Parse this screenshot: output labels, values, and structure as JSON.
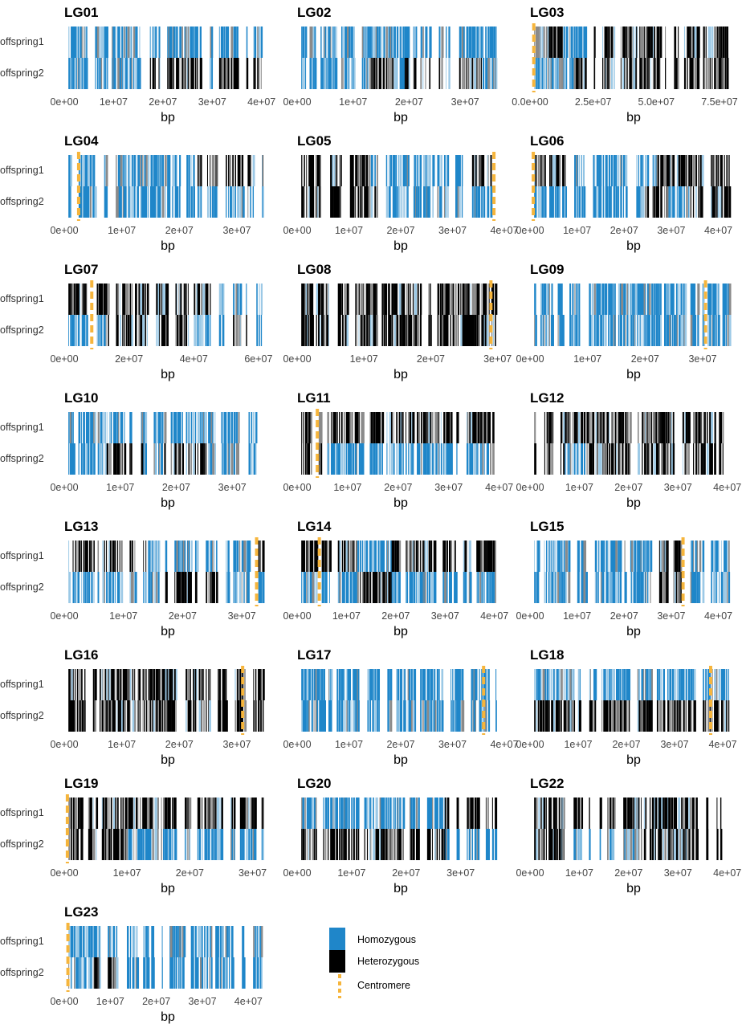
{
  "colors": {
    "homozygous": "#1f86c9",
    "homozygous_light": "#9cc9e6",
    "heterozygous": "#000000",
    "heterozygous_light": "#8a8a8a",
    "centromere": "#f6b53c"
  },
  "chart_data": {
    "type": "heatmap",
    "description_rows": [
      "offspring1",
      "offspring2"
    ],
    "xlabel": "bp",
    "legend": [
      {
        "label": "Homozygous",
        "color": "#1f86c9",
        "kind": "box"
      },
      {
        "label": "Heterozygous",
        "color": "#000000",
        "kind": "box"
      },
      {
        "label": "Centromere",
        "color": "#f6b53c",
        "kind": "dashed-line"
      }
    ],
    "panels": [
      {
        "name": "LG01",
        "xmax": 42000000,
        "ticks": [
          0,
          10000000,
          20000000,
          30000000,
          40000000
        ],
        "tick_labels": [
          "0e+00",
          "1e+07",
          "2e+07",
          "3e+07",
          "4e+07"
        ],
        "centromere": null,
        "offspring1": [
          [
            "B",
            0,
            45000000
          ]
        ],
        "offspring2": [
          [
            "B",
            0,
            17000000
          ],
          [
            "K",
            17000000,
            28000000
          ],
          [
            "B",
            28000000,
            30000000
          ],
          [
            "K",
            30000000,
            45000000
          ]
        ]
      },
      {
        "name": "LG02",
        "xmax": 37000000,
        "ticks": [
          0,
          10000000,
          20000000,
          30000000
        ],
        "tick_labels": [
          "0e+00",
          "1e+07",
          "2e+07",
          "3e+07"
        ],
        "centromere": null,
        "offspring1": [
          [
            "B",
            0,
            40000000
          ]
        ],
        "offspring2": [
          [
            "B",
            0,
            13000000
          ],
          [
            "K",
            13000000,
            17000000
          ],
          [
            "B",
            17000000,
            19000000
          ],
          [
            "K",
            19000000,
            33000000
          ],
          [
            "B",
            33000000,
            40000000
          ]
        ]
      },
      {
        "name": "LG03",
        "xmax": 82000000,
        "ticks": [
          0,
          25000000,
          50000000,
          75000000
        ],
        "tick_labels": [
          "0.0e+00",
          "2.5e+07",
          "5.0e+07",
          "7.5e+07"
        ],
        "centromere": 1500000,
        "offspring1": [
          [
            "K",
            0,
            13000000
          ],
          [
            "B",
            13000000,
            25000000
          ],
          [
            "K",
            25000000,
            60000000
          ]
        ],
        "offspring2": [
          [
            "B",
            0,
            17000000
          ],
          [
            "K",
            17000000,
            60000000
          ]
        ]
      },
      {
        "name": "LG04",
        "xmax": 36000000,
        "ticks": [
          0,
          10000000,
          20000000,
          30000000
        ],
        "tick_labels": [
          "0e+00",
          "1e+07",
          "2e+07",
          "3e+07"
        ],
        "centromere": 2500000,
        "offspring1": [
          [
            "B",
            0,
            23000000
          ],
          [
            "K",
            23000000,
            40000000
          ]
        ],
        "offspring2": [
          [
            "B",
            0,
            40000000
          ]
        ]
      },
      {
        "name": "LG05",
        "xmax": 40000000,
        "ticks": [
          0,
          10000000,
          20000000,
          30000000,
          40000000
        ],
        "tick_labels": [
          "0e+00",
          "1e+07",
          "2e+07",
          "3e+07",
          "4e+07"
        ],
        "centromere": 38000000,
        "offspring1": [
          [
            "K",
            0,
            14000000
          ],
          [
            "B",
            14000000,
            32000000
          ],
          [
            "K",
            32000000,
            40000000
          ]
        ],
        "offspring2": [
          [
            "K",
            0,
            15000000
          ],
          [
            "B",
            15000000,
            40000000
          ]
        ]
      },
      {
        "name": "LG06",
        "xmax": 44000000,
        "ticks": [
          0,
          10000000,
          20000000,
          30000000,
          40000000
        ],
        "tick_labels": [
          "0e+00",
          "1e+07",
          "2e+07",
          "3e+07",
          "4e+07"
        ],
        "centromere": 700000,
        "offspring1": [
          [
            "K",
            0,
            8000000
          ],
          [
            "B",
            8000000,
            27000000
          ],
          [
            "K",
            27000000,
            40000000
          ]
        ],
        "offspring2": [
          [
            "B",
            0,
            24000000
          ],
          [
            "K",
            24000000,
            29000000
          ],
          [
            "B",
            29000000,
            34000000
          ],
          [
            "K",
            34000000,
            40000000
          ]
        ]
      },
      {
        "name": "LG07",
        "xmax": 64000000,
        "ticks": [
          0,
          20000000,
          40000000,
          60000000
        ],
        "tick_labels": [
          "0e+00",
          "2e+07",
          "4e+07",
          "6e+07"
        ],
        "centromere": 8500000,
        "offspring1": [
          [
            "K",
            0,
            45000000
          ],
          [
            "B",
            45000000,
            64000000
          ]
        ],
        "offspring2": [
          [
            "B",
            0,
            13000000
          ],
          [
            "K",
            13000000,
            40000000
          ],
          [
            "B",
            40000000,
            52000000
          ],
          [
            "K",
            52000000,
            58000000
          ],
          [
            "B",
            58000000,
            64000000
          ]
        ]
      },
      {
        "name": "LG08",
        "xmax": 31000000,
        "ticks": [
          0,
          10000000,
          20000000,
          30000000
        ],
        "tick_labels": [
          "0e+00",
          "1e+07",
          "2e+07",
          "3e+07"
        ],
        "centromere": 29000000,
        "offspring1": [
          [
            "K",
            0,
            29000000
          ]
        ],
        "offspring2": [
          [
            "K",
            0,
            29000000
          ]
        ]
      },
      {
        "name": "LG09",
        "xmax": 36000000,
        "ticks": [
          0,
          10000000,
          20000000,
          30000000
        ],
        "tick_labels": [
          "0e+00",
          "1e+07",
          "2e+07",
          "3e+07"
        ],
        "centromere": 30500000,
        "offspring1": [
          [
            "B",
            0,
            40000000
          ]
        ],
        "offspring2": [
          [
            "B",
            0,
            40000000
          ]
        ]
      },
      {
        "name": "LG10",
        "xmax": 37000000,
        "ticks": [
          0,
          10000000,
          20000000,
          30000000
        ],
        "tick_labels": [
          "0e+00",
          "1e+07",
          "2e+07",
          "3e+07"
        ],
        "centromere": null,
        "offspring1": [
          [
            "B",
            0,
            40000000
          ]
        ],
        "offspring2": [
          [
            "B",
            0,
            7500000
          ],
          [
            "K",
            7500000,
            14000000
          ],
          [
            "B",
            14000000,
            17500000
          ],
          [
            "K",
            17500000,
            26000000
          ],
          [
            "B",
            26000000,
            40000000
          ]
        ]
      },
      {
        "name": "LG11",
        "xmax": 41000000,
        "ticks": [
          0,
          10000000,
          20000000,
          30000000,
          40000000
        ],
        "tick_labels": [
          "0e+00",
          "1e+07",
          "2e+07",
          "3e+07",
          "4e+07"
        ],
        "centromere": 4000000,
        "offspring1": [
          [
            "K",
            0,
            40000000
          ]
        ],
        "offspring2": [
          [
            "K",
            0,
            5000000
          ],
          [
            "B",
            5000000,
            40000000
          ]
        ]
      },
      {
        "name": "LG12",
        "xmax": 42000000,
        "ticks": [
          0,
          10000000,
          20000000,
          30000000,
          40000000
        ],
        "tick_labels": [
          "0e+00",
          "1e+07",
          "2e+07",
          "3e+07",
          "4e+07"
        ],
        "centromere": null,
        "offspring1": [
          [
            "K",
            0,
            40000000
          ]
        ],
        "offspring2": [
          [
            "K",
            0,
            7000000
          ],
          [
            "B",
            7000000,
            11000000
          ],
          [
            "K",
            11000000,
            40000000
          ]
        ]
      },
      {
        "name": "LG13",
        "xmax": 35000000,
        "ticks": [
          0,
          10000000,
          20000000,
          30000000
        ],
        "tick_labels": [
          "0e+00",
          "1e+07",
          "2e+07",
          "3e+07"
        ],
        "centromere": 32500000,
        "offspring1": [
          [
            "K",
            0,
            14000000
          ],
          [
            "B",
            14000000,
            32000000
          ],
          [
            "K",
            32000000,
            40000000
          ]
        ],
        "offspring2": [
          [
            "B",
            0,
            17000000
          ],
          [
            "K",
            17000000,
            26000000
          ],
          [
            "B",
            26000000,
            40000000
          ]
        ]
      },
      {
        "name": "LG14",
        "xmax": 42000000,
        "ticks": [
          0,
          10000000,
          20000000,
          30000000,
          40000000
        ],
        "tick_labels": [
          "0e+00",
          "1e+07",
          "2e+07",
          "3e+07",
          "4e+07"
        ],
        "centromere": 4500000,
        "offspring1": [
          [
            "K",
            0,
            12000000
          ],
          [
            "B",
            12000000,
            19000000
          ],
          [
            "K",
            19000000,
            40000000
          ]
        ],
        "offspring2": [
          [
            "B",
            0,
            12000000
          ],
          [
            "K",
            12000000,
            19000000
          ],
          [
            "B",
            19000000,
            40000000
          ]
        ]
      },
      {
        "name": "LG15",
        "xmax": 44000000,
        "ticks": [
          0,
          10000000,
          20000000,
          30000000,
          40000000
        ],
        "tick_labels": [
          "0e+00",
          "1e+07",
          "2e+07",
          "3e+07",
          "4e+07"
        ],
        "centromere": 32500000,
        "offspring1": [
          [
            "B",
            0,
            27000000
          ],
          [
            "K",
            27000000,
            33000000
          ],
          [
            "B",
            33000000,
            40000000
          ]
        ],
        "offspring2": [
          [
            "B",
            0,
            27000000
          ],
          [
            "K",
            27000000,
            33000000
          ],
          [
            "B",
            33000000,
            40000000
          ]
        ]
      },
      {
        "name": "LG16",
        "xmax": 36000000,
        "ticks": [
          0,
          10000000,
          20000000,
          30000000
        ],
        "tick_labels": [
          "0e+00",
          "1e+07",
          "2e+07",
          "3e+07"
        ],
        "centromere": 31000000,
        "offspring1": [
          [
            "K",
            0,
            40000000
          ]
        ],
        "offspring2": [
          [
            "K",
            0,
            40000000
          ]
        ]
      },
      {
        "name": "LG17",
        "xmax": 40000000,
        "ticks": [
          0,
          10000000,
          20000000,
          30000000,
          40000000
        ],
        "tick_labels": [
          "0e+00",
          "1e+07",
          "2e+07",
          "3e+07",
          "4e+07"
        ],
        "centromere": 36000000,
        "offspring1": [
          [
            "B",
            0,
            40000000
          ]
        ],
        "offspring2": [
          [
            "B",
            0,
            40000000
          ]
        ]
      },
      {
        "name": "LG18",
        "xmax": 43000000,
        "ticks": [
          0,
          10000000,
          20000000,
          30000000,
          40000000
        ],
        "tick_labels": [
          "0e+00",
          "1e+07",
          "2e+07",
          "3e+07",
          "4e+07"
        ],
        "centromere": 37500000,
        "offspring1": [
          [
            "B",
            0,
            40000000
          ]
        ],
        "offspring2": [
          [
            "K",
            0,
            40000000
          ]
        ]
      },
      {
        "name": "LG19",
        "xmax": 33000000,
        "ticks": [
          0,
          10000000,
          20000000,
          30000000
        ],
        "tick_labels": [
          "0e+00",
          "1e+07",
          "2e+07",
          "3e+07"
        ],
        "centromere": 500000,
        "offspring1": [
          [
            "K",
            0,
            40000000
          ]
        ],
        "offspring2": [
          [
            "K",
            0,
            10000000
          ],
          [
            "B",
            10000000,
            40000000
          ]
        ]
      },
      {
        "name": "LG20",
        "xmax": 38000000,
        "ticks": [
          0,
          10000000,
          20000000,
          30000000
        ],
        "tick_labels": [
          "0e+00",
          "1e+07",
          "2e+07",
          "3e+07"
        ],
        "centromere": null,
        "offspring1": [
          [
            "B",
            0,
            27000000
          ],
          [
            "K",
            27000000,
            40000000
          ]
        ],
        "offspring2": [
          [
            "K",
            0,
            27000000
          ],
          [
            "B",
            27000000,
            40000000
          ]
        ]
      },
      {
        "name": "LG22",
        "xmax": 42000000,
        "ticks": [
          0,
          10000000,
          20000000,
          30000000,
          40000000
        ],
        "tick_labels": [
          "0e+00",
          "1e+07",
          "2e+07",
          "3e+07",
          "4e+07"
        ],
        "centromere": null,
        "offspring1": [
          [
            "K",
            0,
            40000000
          ]
        ],
        "offspring2": [
          [
            "K",
            0,
            7000000
          ],
          [
            "B",
            7000000,
            22000000
          ],
          [
            "K",
            22000000,
            40000000
          ]
        ]
      },
      {
        "name": "LG23",
        "xmax": 45000000,
        "ticks": [
          0,
          10000000,
          20000000,
          30000000,
          40000000
        ],
        "tick_labels": [
          "0e+00",
          "1e+07",
          "2e+07",
          "3e+07",
          "4e+07"
        ],
        "centromere": 800000,
        "offspring1": [
          [
            "B",
            0,
            45000000
          ]
        ],
        "offspring2": [
          [
            "B",
            0,
            6500000
          ],
          [
            "K",
            6500000,
            12000000
          ],
          [
            "B",
            12000000,
            45000000
          ]
        ]
      }
    ]
  }
}
